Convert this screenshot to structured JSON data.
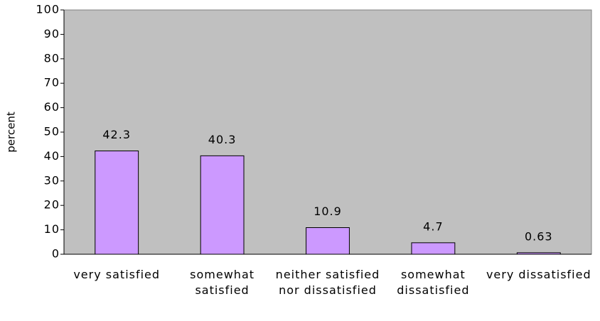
{
  "chart_data": {
    "type": "bar",
    "y_label": "percent",
    "categories": [
      "very satisfied",
      "somewhat satisfied",
      "neither satisfied nor dissatisfied",
      "somewhat dissatisfied",
      "very dissatisfied"
    ],
    "values": [
      42.3,
      40.3,
      10.9,
      4.7,
      0.63
    ],
    "color": "#cc99ff",
    "background": "#c0c0c0",
    "ylim": [
      0,
      100
    ],
    "yticks": [
      0,
      10,
      20,
      30,
      40,
      50,
      60,
      70,
      80,
      90,
      100
    ],
    "grid": false
  }
}
